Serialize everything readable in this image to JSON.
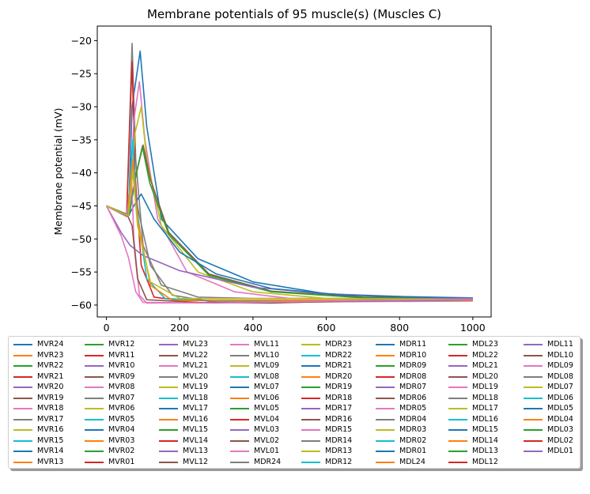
{
  "chart_data": {
    "type": "line",
    "title": "Membrane potentials of 95 muscle(s) (Muscles C)",
    "xlabel": "",
    "ylabel": "Membrane potential (mV)",
    "xlim": [
      -25,
      1050
    ],
    "ylim": [
      -61.8,
      -17.8
    ],
    "xticks": [
      "0",
      "200",
      "400",
      "600",
      "800",
      "1000"
    ],
    "yticks": [
      "−20",
      "−25",
      "−30",
      "−35",
      "−40",
      "−45",
      "−50",
      "−55",
      "−60"
    ],
    "grid": false,
    "legend_placement": "below",
    "colors": [
      "#1f77b4",
      "#ff7f0e",
      "#2ca02c",
      "#d62728",
      "#9467bd",
      "#8c564b",
      "#e377c2",
      "#7f7f7f",
      "#bcbd22",
      "#17becf"
    ],
    "legend_columns": [
      [
        "MVR24",
        "MVR23",
        "MVR22",
        "MVR21",
        "MVR20",
        "MVR19",
        "MVR18",
        "MVR17",
        "MVR16",
        "MVR15",
        "MVR14",
        "MVR13"
      ],
      [
        "MVR12",
        "MVR11",
        "MVR10",
        "MVR09",
        "MVR08",
        "MVR07",
        "MVR06",
        "MVR05",
        "MVR04",
        "MVR03",
        "MVR02",
        "MVR01"
      ],
      [
        "MVL23",
        "MVL22",
        "MVL21",
        "MVL20",
        "MVL19",
        "MVL18",
        "MVL17",
        "MVL16",
        "MVL15",
        "MVL14",
        "MVL13",
        "MVL12"
      ],
      [
        "MVL11",
        "MVL10",
        "MVL09",
        "MVL08",
        "MVL07",
        "MVL06",
        "MVL05",
        "MVL04",
        "MVL03",
        "MVL02",
        "MVL01",
        "MDR24"
      ],
      [
        "MDR23",
        "MDR22",
        "MDR21",
        "MDR20",
        "MDR19",
        "MDR18",
        "MDR17",
        "MDR16",
        "MDR15",
        "MDR14",
        "MDR13",
        "MDR12"
      ],
      [
        "MDR11",
        "MDR10",
        "MDR09",
        "MDR08",
        "MDR07",
        "MDR06",
        "MDR05",
        "MDR04",
        "MDR03",
        "MDR02",
        "MDR01",
        "MDL24"
      ],
      [
        "MDL23",
        "MDL22",
        "MDL21",
        "MDL20",
        "MDL19",
        "MDL18",
        "MDL17",
        "MDL16",
        "MDL15",
        "MDL14",
        "MDL13",
        "MDL12"
      ],
      [
        "MDL11",
        "MDL10",
        "MDL09",
        "MDL08",
        "MDL07",
        "MDL06",
        "MDL05",
        "MDL04",
        "MDL03",
        "MDL02",
        "MDL01"
      ]
    ],
    "series_shapes": [
      {
        "color": "#1f77b4",
        "points": [
          [
            0,
            -45
          ],
          [
            60,
            -46.5
          ],
          [
            70,
            -30
          ],
          [
            92,
            -21.6
          ],
          [
            110,
            -33
          ],
          [
            150,
            -47
          ],
          [
            250,
            -53
          ],
          [
            400,
            -56.5
          ],
          [
            600,
            -58.3
          ],
          [
            800,
            -58.8
          ],
          [
            1000,
            -59
          ]
        ]
      },
      {
        "color": "#7f7f7f",
        "points": [
          [
            0,
            -45
          ],
          [
            55,
            -46.6
          ],
          [
            70,
            -20.4
          ],
          [
            80,
            -38
          ],
          [
            100,
            -51
          ],
          [
            150,
            -57
          ],
          [
            250,
            -58.8
          ],
          [
            400,
            -59
          ],
          [
            1000,
            -59
          ]
        ]
      },
      {
        "color": "#d62728",
        "points": [
          [
            0,
            -45
          ],
          [
            55,
            -46.6
          ],
          [
            70,
            -23.2
          ],
          [
            78,
            -40
          ],
          [
            95,
            -54
          ],
          [
            130,
            -58.8
          ],
          [
            200,
            -59.3
          ],
          [
            1000,
            -59.3
          ]
        ]
      },
      {
        "color": "#e377c2",
        "points": [
          [
            0,
            -45
          ],
          [
            62,
            -46.4
          ],
          [
            75,
            -32
          ],
          [
            90,
            -26.2
          ],
          [
            105,
            -35
          ],
          [
            140,
            -47
          ],
          [
            220,
            -55
          ],
          [
            350,
            -58
          ],
          [
            500,
            -59
          ],
          [
            1000,
            -59.1
          ]
        ]
      },
      {
        "color": "#bcbd22",
        "points": [
          [
            0,
            -45
          ],
          [
            62,
            -46.4
          ],
          [
            78,
            -34
          ],
          [
            95,
            -30
          ],
          [
            110,
            -38
          ],
          [
            150,
            -48
          ],
          [
            250,
            -55
          ],
          [
            400,
            -58
          ],
          [
            600,
            -59
          ],
          [
            1000,
            -59.1
          ]
        ]
      },
      {
        "color": "#8c564b",
        "points": [
          [
            0,
            -45
          ],
          [
            62,
            -46.4
          ],
          [
            82,
            -40
          ],
          [
            100,
            -35.8
          ],
          [
            120,
            -41
          ],
          [
            170,
            -49
          ],
          [
            280,
            -55.3
          ],
          [
            450,
            -57.9
          ],
          [
            700,
            -58.8
          ],
          [
            1000,
            -59
          ]
        ]
      },
      {
        "color": "#2ca02c",
        "points": [
          [
            0,
            -45
          ],
          [
            62,
            -46.4
          ],
          [
            82,
            -40
          ],
          [
            98,
            -36
          ],
          [
            118,
            -41.5
          ],
          [
            170,
            -49.3
          ],
          [
            280,
            -55.5
          ],
          [
            450,
            -58
          ],
          [
            700,
            -58.9
          ],
          [
            1000,
            -59.1
          ]
        ]
      },
      {
        "color": "#9467bd",
        "points": [
          [
            0,
            -45
          ],
          [
            40,
            -49
          ],
          [
            65,
            -51
          ],
          [
            100,
            -52.5
          ],
          [
            200,
            -54.8
          ],
          [
            400,
            -57.3
          ],
          [
            600,
            -58.3
          ],
          [
            800,
            -58.7
          ],
          [
            1000,
            -58.9
          ]
        ]
      },
      {
        "color": "#1f77b4",
        "points": [
          [
            0,
            -45
          ],
          [
            60,
            -46.5
          ],
          [
            85,
            -44
          ],
          [
            95,
            -43.2
          ],
          [
            130,
            -47
          ],
          [
            200,
            -52
          ],
          [
            300,
            -55.3
          ],
          [
            450,
            -57.5
          ],
          [
            650,
            -58.5
          ],
          [
            1000,
            -59
          ]
        ]
      },
      {
        "color": "#e377c2",
        "points": [
          [
            0,
            -45
          ],
          [
            55,
            -46.6
          ],
          [
            68,
            -40
          ],
          [
            75,
            -50
          ],
          [
            90,
            -58.5
          ],
          [
            110,
            -59.7
          ],
          [
            300,
            -59.6
          ],
          [
            1000,
            -59.4
          ]
        ]
      },
      {
        "color": "#17becf",
        "points": [
          [
            0,
            -45
          ],
          [
            58,
            -46.5
          ],
          [
            72,
            -35
          ],
          [
            82,
            -45
          ],
          [
            110,
            -56
          ],
          [
            160,
            -59
          ],
          [
            300,
            -59.4
          ],
          [
            1000,
            -59.3
          ]
        ]
      },
      {
        "color": "#ff7f0e",
        "points": [
          [
            0,
            -45
          ],
          [
            58,
            -46.5
          ],
          [
            72,
            -38
          ],
          [
            85,
            -47
          ],
          [
            120,
            -57
          ],
          [
            180,
            -59.3
          ],
          [
            1000,
            -59.3
          ]
        ]
      },
      {
        "color": "#7f7f7f",
        "points": [
          [
            0,
            -45
          ],
          [
            58,
            -46.5
          ],
          [
            75,
            -42
          ],
          [
            88,
            -46
          ],
          [
            120,
            -54
          ],
          [
            180,
            -58.5
          ],
          [
            300,
            -59.6
          ],
          [
            500,
            -59.6
          ],
          [
            1000,
            -59.2
          ]
        ]
      },
      {
        "color": "#8c564b",
        "points": [
          [
            0,
            -45
          ],
          [
            58,
            -46.5
          ],
          [
            70,
            -48
          ],
          [
            85,
            -56
          ],
          [
            110,
            -59.2
          ],
          [
            250,
            -59.6
          ],
          [
            450,
            -59.7
          ],
          [
            700,
            -59.3
          ],
          [
            1000,
            -59.1
          ]
        ]
      },
      {
        "color": "#bcbd22",
        "points": [
          [
            0,
            -45
          ],
          [
            60,
            -46.5
          ],
          [
            72,
            -39.8
          ],
          [
            85,
            -48
          ],
          [
            120,
            -56.5
          ],
          [
            200,
            -59
          ],
          [
            1000,
            -59.1
          ]
        ]
      },
      {
        "color": "#e377c2",
        "points": [
          [
            0,
            -45
          ],
          [
            40,
            -49.5
          ],
          [
            60,
            -52.8
          ],
          [
            80,
            -58
          ],
          [
            100,
            -59.6
          ],
          [
            300,
            -59.7
          ],
          [
            600,
            -59.4
          ],
          [
            1000,
            -59.1
          ]
        ]
      }
    ]
  }
}
